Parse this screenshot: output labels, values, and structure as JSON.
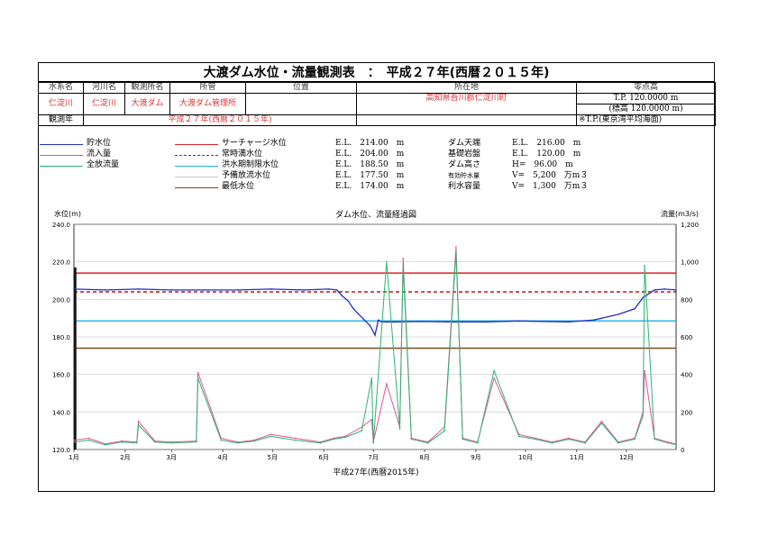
{
  "title": "大渡ダム水位・流量観測表　：　平成２７年(西暦２０１５年)",
  "info": {
    "headers": [
      "水系名",
      "河川名",
      "観測所名",
      "所管",
      "位置",
      "所在地",
      "零点高"
    ],
    "values": [
      "仁淀川",
      "仁淀川",
      "大渡ダム",
      "大渡ダム管理所",
      "",
      "高知県吾川郡仁淀川町",
      "T.P. 120.0000 m"
    ],
    "zero_note": "(標高 120.0000 m)",
    "year_label": "観測年",
    "year_value": "平成２７年(西暦２０１５年)",
    "datum_note": "※T.P.(東京湾平均海面)"
  },
  "legend": {
    "series": [
      {
        "label": "貯水位",
        "color": "#1f2fc8"
      },
      {
        "label": "流入量",
        "color": "#e8509a"
      },
      {
        "label": "全放流量",
        "color": "#2bb56a"
      }
    ],
    "levels": [
      {
        "label": "サーチャージ水位",
        "el": "E.L.　214.00　m",
        "color": "#e02020",
        "dash": false
      },
      {
        "label": "常時満水位",
        "el": "E.L.　204.00　m",
        "color": "#d01010",
        "dash": true
      },
      {
        "label": "洪水期制限水位",
        "el": "E.L.　188.50　m",
        "color": "#29b6e6",
        "dash": false
      },
      {
        "label": "予備放流水位",
        "el": "E.L.　177.50　m",
        "color": "#c8c8c8",
        "dash": false
      },
      {
        "label": "最低水位",
        "el": "E.L.　174.00　m",
        "color": "#7a4a1e",
        "dash": false
      }
    ],
    "dam": [
      {
        "label": "ダム天端",
        "value": "E.L.　216.00　m"
      },
      {
        "label": "基礎岩盤",
        "value": "E.L.　120.00　m"
      },
      {
        "label": "ダム高さ",
        "value": "H=　96.00　m"
      },
      {
        "label": "有効貯水量",
        "value": "V=　5,200　万m３"
      },
      {
        "label": "利水容量",
        "value": "V=　1,300　万m３"
      }
    ]
  },
  "chart_data": {
    "type": "line",
    "title": "ダム水位、流量経過図",
    "ylabel_left": "水位(m)",
    "ylabel_right": "流量(m3/s)",
    "xlabel": "平成27年(西暦2015年)",
    "ylim_left": [
      120.0,
      240.0
    ],
    "ylim_right": [
      0,
      1200
    ],
    "yticks_left": [
      "120.0",
      "140.0",
      "160.0",
      "180.0",
      "200.0",
      "220.0",
      "240.0"
    ],
    "yticks_right": [
      "0",
      "200",
      "400",
      "600",
      "800",
      "1,000",
      "1,200"
    ],
    "categories": [
      "1月",
      "2月",
      "3月",
      "4月",
      "5月",
      "6月",
      "7月",
      "8月",
      "9月",
      "10月",
      "11月",
      "12月"
    ],
    "level_lines": [
      214.0,
      204.0,
      188.5,
      177.5,
      174.0
    ],
    "series": [
      {
        "name": "貯水位",
        "axis": "left",
        "x": [
          1,
          20,
          40,
          60,
          80,
          100,
          120,
          140,
          155,
          160,
          163,
          167,
          170,
          176,
          180,
          183,
          185,
          187,
          195,
          210,
          230,
          250,
          270,
          300,
          315,
          320,
          330,
          340,
          345,
          352,
          358,
          365
        ],
        "values": [
          205.5,
          205.0,
          205.5,
          205.0,
          205.0,
          205.0,
          205.5,
          205.0,
          205.5,
          205.0,
          202.0,
          199.0,
          195.0,
          189.5,
          186.0,
          181.0,
          189.0,
          188.0,
          188.0,
          188.2,
          188.0,
          188.0,
          188.5,
          188.0,
          189.0,
          190.0,
          192.0,
          195.0,
          201.0,
          205.0,
          205.5,
          205.0
        ]
      },
      {
        "name": "流入量",
        "axis": "right",
        "x": [
          1,
          10,
          20,
          30,
          39,
          40,
          50,
          60,
          75,
          76,
          90,
          100,
          110,
          120,
          135,
          150,
          158,
          165,
          175,
          181,
          182,
          190,
          198,
          200,
          205,
          215,
          225,
          232,
          236,
          245,
          255,
          270,
          280,
          290,
          300,
          310,
          320,
          330,
          340,
          345,
          346,
          352,
          360,
          365
        ],
        "values": [
          50,
          60,
          30,
          45,
          40,
          150,
          45,
          40,
          45,
          410,
          60,
          40,
          50,
          80,
          60,
          40,
          60,
          70,
          120,
          160,
          40,
          350,
          120,
          1020,
          60,
          40,
          120,
          1080,
          60,
          40,
          380,
          80,
          60,
          40,
          60,
          40,
          150,
          40,
          60,
          200,
          420,
          60,
          40,
          30
        ]
      },
      {
        "name": "全放流量",
        "axis": "right",
        "x": [
          1,
          10,
          20,
          30,
          39,
          40,
          50,
          60,
          75,
          76,
          90,
          100,
          110,
          120,
          135,
          150,
          158,
          165,
          175,
          181,
          182,
          190,
          198,
          200,
          205,
          215,
          225,
          232,
          236,
          245,
          255,
          270,
          280,
          290,
          300,
          310,
          320,
          330,
          340,
          345,
          346,
          352,
          360,
          365
        ],
        "values": [
          40,
          50,
          25,
          40,
          35,
          130,
          40,
          35,
          40,
          380,
          50,
          35,
          45,
          70,
          50,
          35,
          55,
          65,
          100,
          380,
          35,
          1000,
          110,
          980,
          55,
          35,
          100,
          1050,
          55,
          35,
          420,
          70,
          55,
          35,
          55,
          35,
          140,
          35,
          55,
          180,
          980,
          55,
          35,
          25
        ]
      }
    ]
  }
}
